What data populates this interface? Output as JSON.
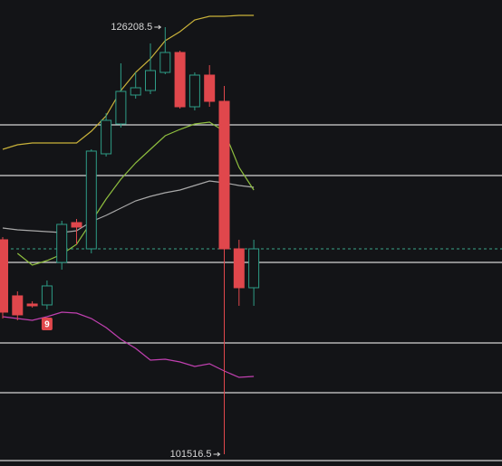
{
  "chart_data": {
    "type": "candlestick",
    "ylim": [
      100836,
      127778
    ],
    "open": [
      113916,
      110673,
      110202,
      110149,
      112608,
      114909,
      113392,
      118885,
      120611,
      122285,
      122547,
      123593,
      124744,
      121605,
      123436,
      121919,
      113392,
      111143
    ],
    "high": [
      114072,
      110934,
      110359,
      111562,
      115014,
      115119,
      119147,
      121239,
      124116,
      123593,
      125267,
      126208.5,
      124849,
      123593,
      124012,
      122808,
      113916,
      113916
    ],
    "low": [
      109365,
      109260,
      109992,
      109888,
      112189,
      113654,
      113131,
      118728,
      120402,
      122076,
      122338,
      123489,
      121500,
      121396,
      121605,
      101516.5,
      110097,
      110097
    ],
    "close": [
      109731,
      109574,
      110097,
      111248,
      114805,
      114648,
      119042,
      120821,
      122494,
      122704,
      123698,
      124744,
      121605,
      123436,
      121919,
      113392,
      111143,
      113392
    ],
    "up_color": "#2e9c86",
    "down_color": "#e0474c",
    "lines": [
      {
        "color": "#c9b23a",
        "values": [
          119147,
          119408,
          119513,
          119513,
          119513,
          119513,
          120193,
          121082,
          122547,
          123593,
          124378,
          125424,
          125947,
          126627,
          126836,
          126836,
          126889,
          126889
        ]
      },
      {
        "color": "#a9a9a9",
        "values": [
          114596,
          114491,
          114439,
          114387,
          114334,
          114439,
          114962,
          115328,
          115747,
          116165,
          116427,
          116636,
          116793,
          117054,
          117316,
          117211,
          117054,
          116950
        ]
      },
      {
        "color": "#8fbf3f",
        "values": [
          null,
          113131,
          112451,
          112713,
          113079,
          113654,
          114962,
          116270,
          117421,
          118362,
          119147,
          119931,
          120298,
          120612,
          120716,
          120193,
          118101,
          116793
        ]
      },
      {
        "color": "#c040b0",
        "values": [
          109469,
          109365,
          109260,
          109469,
          109731,
          109679,
          109365,
          108842,
          108162,
          107639,
          106959,
          107011,
          106854,
          106592,
          106749,
          106331,
          105965,
          106017
        ]
      }
    ],
    "levels": [
      120559,
      117630,
      112608,
      107952,
      105075,
      101151
    ],
    "level_color": "#d4d4d4",
    "last_price": 113392,
    "last_price_color": "#3aa58a",
    "high_label": "126208.5",
    "low_label": "101516.5",
    "badge_text": "9",
    "badge_color": "#e0474c"
  }
}
